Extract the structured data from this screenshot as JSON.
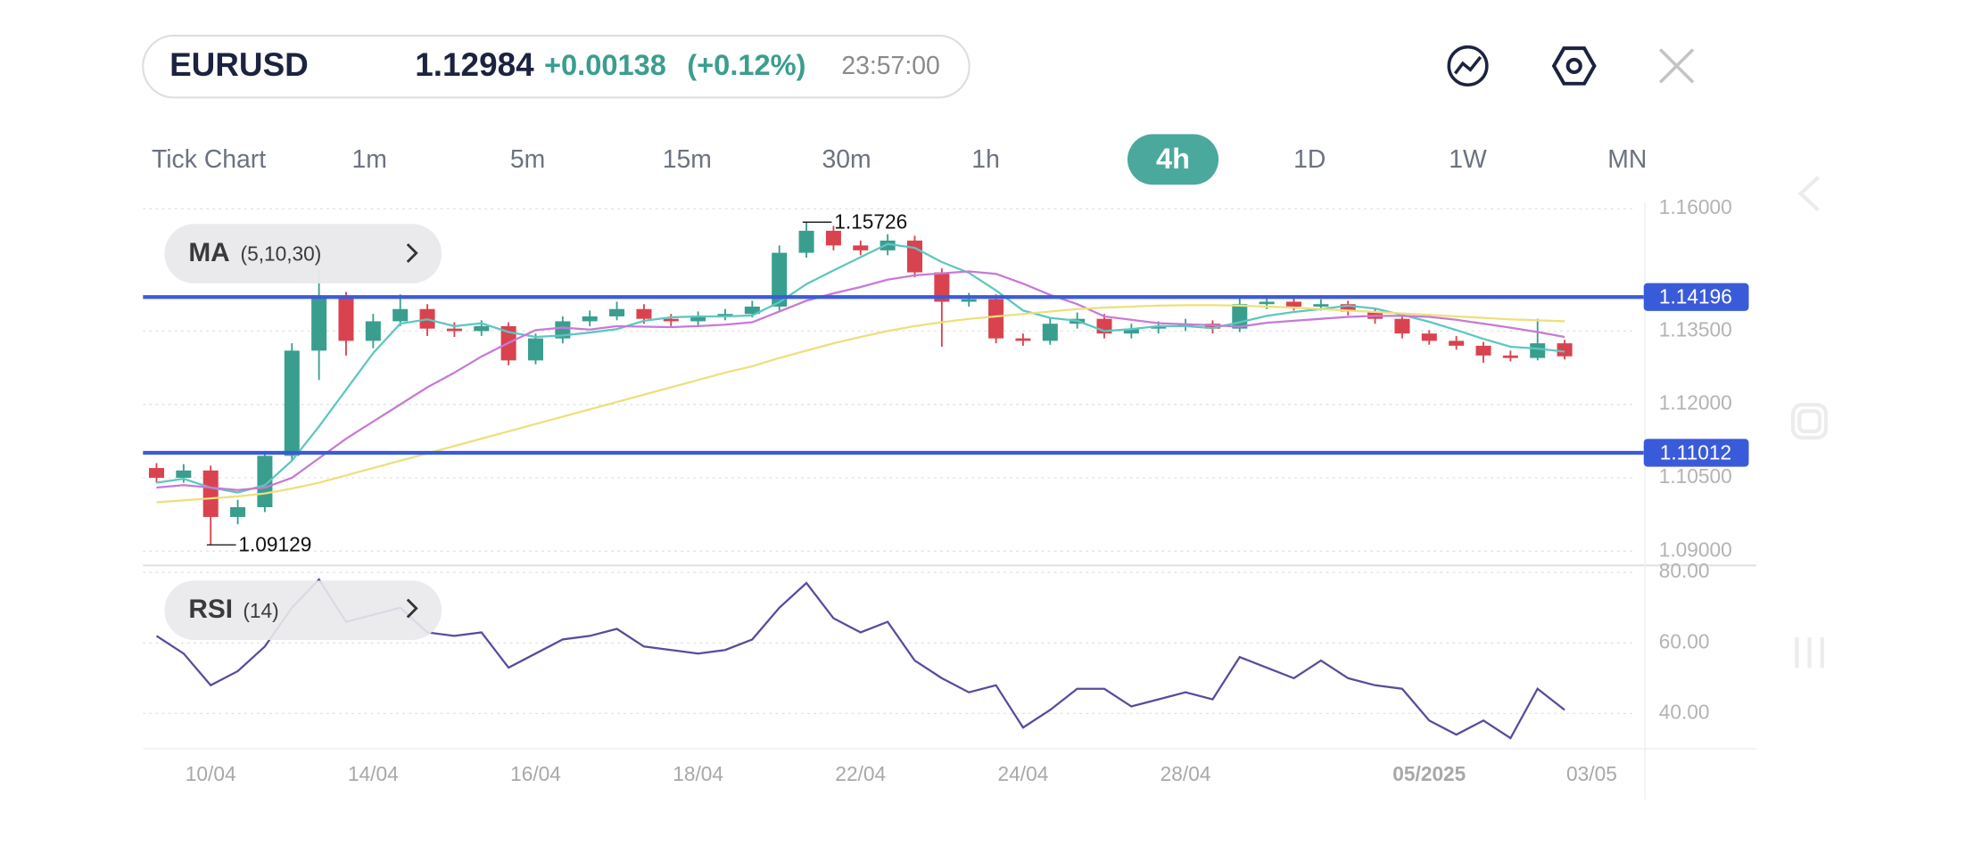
{
  "header": {
    "symbol": "EURUSD",
    "price": "1.12984",
    "change": "+0.00138",
    "change_pct": "(+0.12%)",
    "time": "23:57:00"
  },
  "timeframes": {
    "items": [
      "Tick Chart",
      "1m",
      "5m",
      "15m",
      "30m",
      "1h",
      "4h",
      "1D",
      "1W",
      "MN"
    ],
    "active": 6
  },
  "chart_data": [
    {
      "type": "candlestick",
      "indicator": {
        "name": "MA",
        "params": "(5,10,30)"
      },
      "x": [
        0,
        1,
        2,
        3,
        4,
        5,
        6,
        7,
        8,
        9,
        10,
        11,
        12,
        13,
        14,
        15,
        16,
        17,
        18,
        19,
        20,
        21,
        22,
        23,
        24,
        25,
        26,
        27,
        28,
        29,
        30,
        31,
        32,
        33,
        34,
        35,
        36,
        37,
        38,
        39,
        40,
        41,
        42,
        43,
        44,
        45,
        46,
        47,
        48,
        49,
        50,
        51,
        52
      ],
      "open": [
        1.107,
        1.105,
        1.1065,
        1.097,
        1.099,
        1.1095,
        1.131,
        1.142,
        1.133,
        1.137,
        1.1395,
        1.1355,
        1.135,
        1.136,
        1.129,
        1.1335,
        1.137,
        1.138,
        1.1395,
        1.1375,
        1.137,
        1.138,
        1.1385,
        1.14,
        1.151,
        1.1555,
        1.1525,
        1.1515,
        1.1535,
        1.147,
        1.141,
        1.1415,
        1.1335,
        1.133,
        1.1365,
        1.1375,
        1.1345,
        1.1355,
        1.136,
        1.1365,
        1.1355,
        1.1405,
        1.141,
        1.14,
        1.1405,
        1.139,
        1.1375,
        1.1345,
        1.133,
        1.132,
        1.13,
        1.1295,
        1.1325
      ],
      "high": [
        1.108,
        1.1078,
        1.1075,
        1.1005,
        1.1105,
        1.1325,
        1.1475,
        1.143,
        1.1385,
        1.1425,
        1.1405,
        1.1368,
        1.1372,
        1.1368,
        1.1345,
        1.138,
        1.1392,
        1.141,
        1.1405,
        1.1385,
        1.139,
        1.1395,
        1.1412,
        1.1525,
        1.15726,
        1.1565,
        1.1535,
        1.1548,
        1.1545,
        1.1478,
        1.1428,
        1.1425,
        1.1345,
        1.1378,
        1.1388,
        1.1385,
        1.1365,
        1.137,
        1.1375,
        1.1372,
        1.142,
        1.142,
        1.1418,
        1.1415,
        1.1412,
        1.1398,
        1.1385,
        1.1352,
        1.134,
        1.1328,
        1.131,
        1.1375,
        1.1332
      ],
      "low": [
        1.104,
        1.104,
        1.09129,
        1.0955,
        1.098,
        1.1085,
        1.125,
        1.13,
        1.1315,
        1.136,
        1.134,
        1.1338,
        1.134,
        1.128,
        1.1282,
        1.1325,
        1.136,
        1.1372,
        1.1365,
        1.136,
        1.1362,
        1.1372,
        1.1378,
        1.1392,
        1.15,
        1.1515,
        1.1505,
        1.1505,
        1.146,
        1.1318,
        1.14,
        1.1325,
        1.132,
        1.1322,
        1.1355,
        1.1335,
        1.1335,
        1.1345,
        1.135,
        1.1345,
        1.1348,
        1.1395,
        1.1392,
        1.1392,
        1.1382,
        1.1365,
        1.1335,
        1.1322,
        1.1312,
        1.1285,
        1.1288,
        1.129,
        1.1292
      ],
      "close": [
        1.105,
        1.1065,
        1.097,
        1.099,
        1.1095,
        1.131,
        1.142,
        1.133,
        1.137,
        1.1395,
        1.1355,
        1.135,
        1.136,
        1.129,
        1.1335,
        1.137,
        1.138,
        1.1395,
        1.1375,
        1.137,
        1.138,
        1.1385,
        1.14,
        1.151,
        1.1555,
        1.1525,
        1.1515,
        1.1535,
        1.147,
        1.141,
        1.1415,
        1.1335,
        1.133,
        1.1365,
        1.1375,
        1.1345,
        1.1355,
        1.136,
        1.1365,
        1.1355,
        1.1405,
        1.141,
        1.14,
        1.1405,
        1.139,
        1.1375,
        1.1345,
        1.133,
        1.132,
        1.13,
        1.1295,
        1.1325,
        1.12984
      ],
      "up_color": "#3a9e8f",
      "down_color": "#d9434f",
      "series": [
        {
          "color": "#5cc7c0",
          "values": [
            1.104,
            1.1048,
            1.103,
            1.102,
            1.1035,
            1.1085,
            1.1155,
            1.123,
            1.1305,
            1.1365,
            1.1374,
            1.136,
            1.1366,
            1.1348,
            1.1338,
            1.1341,
            1.1347,
            1.1354,
            1.1371,
            1.1378,
            1.138,
            1.138,
            1.1382,
            1.1409,
            1.1446,
            1.1474,
            1.1501,
            1.1528,
            1.152,
            1.1491,
            1.1469,
            1.1433,
            1.1392,
            1.1377,
            1.1371,
            1.135,
            1.1354,
            1.136,
            1.136,
            1.1356,
            1.1368,
            1.1381,
            1.1389,
            1.1395,
            1.1402,
            1.1396,
            1.1383,
            1.1369,
            1.1352,
            1.1334,
            1.1318,
            1.1314,
            1.1308
          ]
        },
        {
          "color": "#c77ad6",
          "values": [
            1.103,
            1.1035,
            1.103,
            1.1025,
            1.103,
            1.105,
            1.109,
            1.113,
            1.1165,
            1.12,
            1.1235,
            1.1265,
            1.1298,
            1.1326,
            1.1352,
            1.1357,
            1.1353,
            1.136,
            1.1359,
            1.1358,
            1.136,
            1.1363,
            1.1368,
            1.139,
            1.1412,
            1.1427,
            1.144,
            1.1455,
            1.1464,
            1.1468,
            1.1472,
            1.1467,
            1.1447,
            1.1424,
            1.1405,
            1.138,
            1.1373,
            1.1366,
            1.1364,
            1.1362,
            1.1359,
            1.1367,
            1.1371,
            1.1375,
            1.1379,
            1.1381,
            1.1381,
            1.1379,
            1.1373,
            1.1365,
            1.1357,
            1.1348,
            1.1338
          ]
        },
        {
          "color": "#ece07a",
          "values": [
            1.1,
            1.1004,
            1.1008,
            1.1012,
            1.1018,
            1.1028,
            1.104,
            1.1055,
            1.107,
            1.1085,
            1.11,
            1.1115,
            1.113,
            1.1145,
            1.116,
            1.1175,
            1.119,
            1.1205,
            1.122,
            1.1235,
            1.125,
            1.1265,
            1.1278,
            1.1295,
            1.131,
            1.1325,
            1.1338,
            1.135,
            1.136,
            1.1368,
            1.1375,
            1.138,
            1.1385,
            1.139,
            1.1395,
            1.1398,
            1.14,
            1.1402,
            1.1403,
            1.1403,
            1.1402,
            1.14,
            1.1398,
            1.1395,
            1.1392,
            1.1389,
            1.1386,
            1.1383,
            1.138,
            1.1377,
            1.1374,
            1.1372,
            1.137
          ]
        }
      ],
      "levels": [
        {
          "value": 1.14196,
          "label": "1.14196",
          "color": "#3a5bd9"
        },
        {
          "value": 1.11012,
          "label": "1.11012",
          "color": "#3a5bd9"
        }
      ],
      "annotations": [
        {
          "x": 24,
          "y": 1.15726,
          "label": "1.15726"
        },
        {
          "x": 2,
          "y": 1.09129,
          "label": "1.09129"
        }
      ],
      "xlim": [
        -0.5,
        54.5
      ],
      "xticks": [
        {
          "value": 2,
          "label": "10/04"
        },
        {
          "value": 8,
          "label": "14/04"
        },
        {
          "value": 14,
          "label": "16/04"
        },
        {
          "value": 20,
          "label": "18/04"
        },
        {
          "value": 26,
          "label": "22/04"
        },
        {
          "value": 32,
          "label": "24/04"
        },
        {
          "value": 38,
          "label": "28/04"
        },
        {
          "value": 47,
          "label": "05/2025",
          "bold": true
        },
        {
          "value": 53,
          "label": "03/05"
        }
      ],
      "ylim": [
        1.0871,
        1.1618
      ],
      "yticks": [
        {
          "value": 1.16,
          "label": "1.16000"
        },
        {
          "value": 1.135,
          "label": "1.13500"
        },
        {
          "value": 1.12,
          "label": "1.12000"
        },
        {
          "value": 1.105,
          "label": "1.10500"
        },
        {
          "value": 1.09,
          "label": "1.09000"
        }
      ],
      "grid": true
    },
    {
      "type": "line",
      "indicator": {
        "name": "RSI",
        "params": "(14)"
      },
      "color": "#5b4a9c",
      "values": [
        62,
        57,
        48,
        52,
        59,
        70,
        78,
        66,
        68,
        70,
        63,
        62,
        63,
        53,
        57,
        61,
        62,
        64,
        59,
        58,
        57,
        58,
        61,
        70,
        77,
        67,
        63,
        66,
        55,
        50,
        46,
        48,
        36,
        41,
        47,
        47,
        42,
        44,
        46,
        44,
        56,
        53,
        50,
        55,
        50,
        48,
        47,
        38,
        34,
        38,
        33,
        47,
        41
      ],
      "ylim": [
        30,
        82
      ],
      "yticks": [
        {
          "value": 80,
          "label": "80.00"
        },
        {
          "value": 60,
          "label": "60.00"
        },
        {
          "value": 40,
          "label": "40.00"
        }
      ],
      "grid": true
    }
  ]
}
